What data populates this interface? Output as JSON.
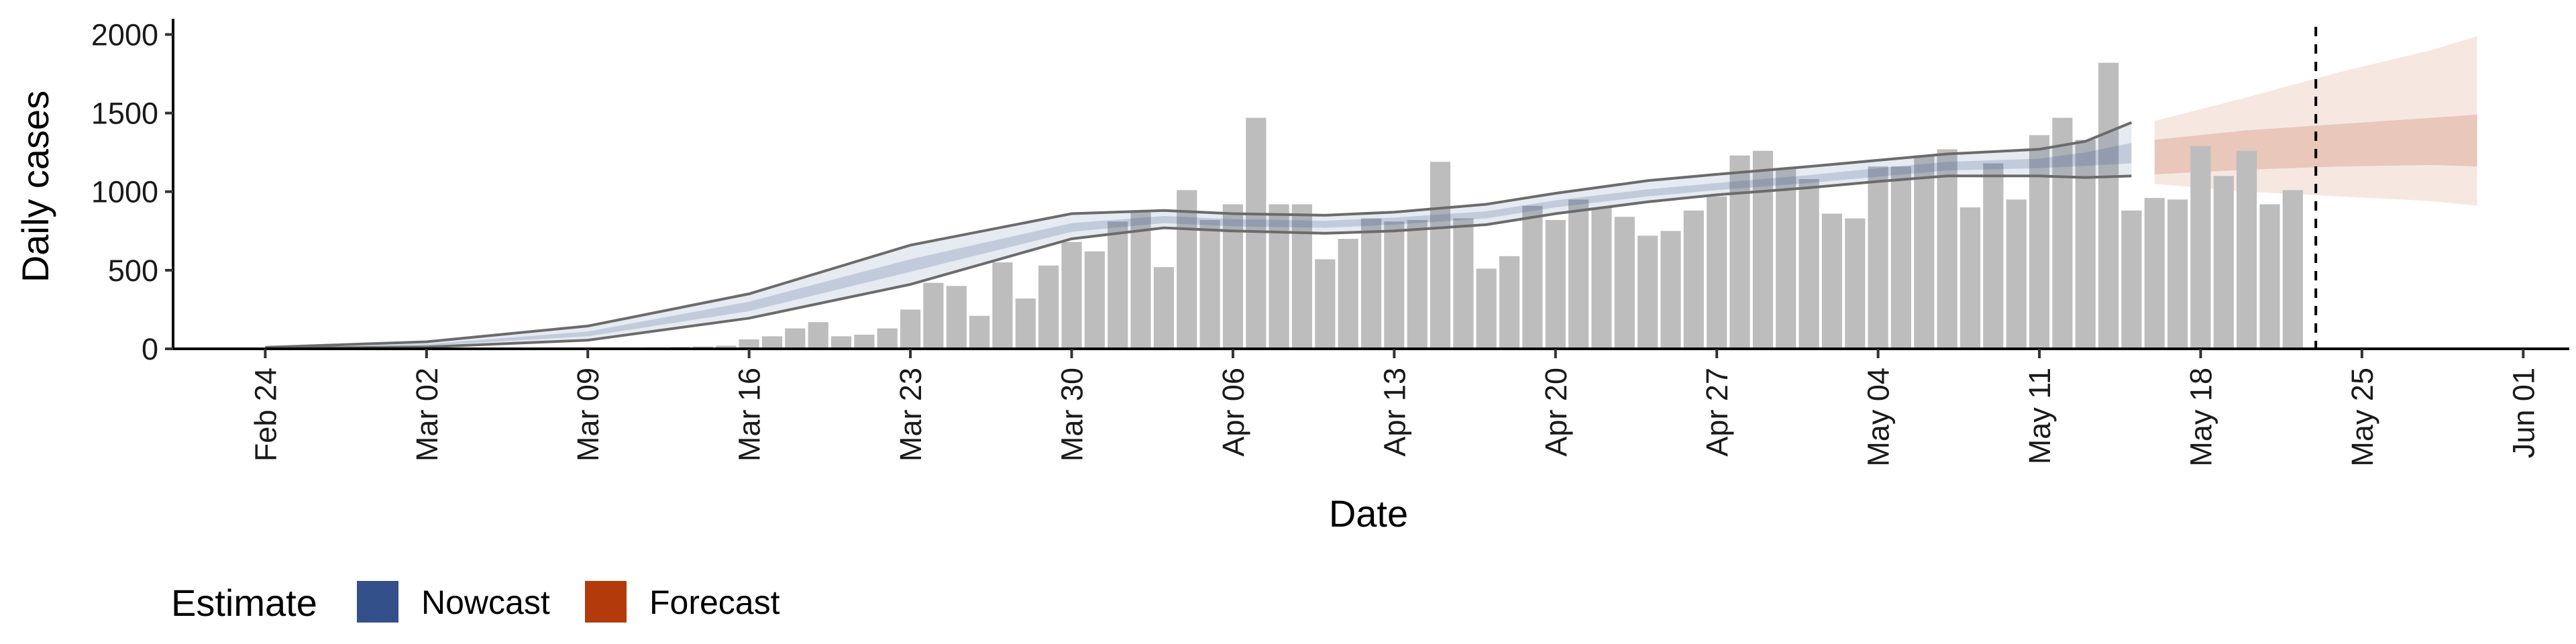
{
  "chart_data": {
    "type": "bar",
    "title": "",
    "xlabel": "Date",
    "ylabel": "Daily cases",
    "ylim": [
      0,
      2100
    ],
    "y_ticks": [
      0,
      500,
      1000,
      1500,
      2000
    ],
    "x_range": [
      "2020-02-20",
      "2020-06-03"
    ],
    "x_tick_dates": [
      "2020-02-24",
      "2020-03-02",
      "2020-03-09",
      "2020-03-16",
      "2020-03-23",
      "2020-03-30",
      "2020-04-06",
      "2020-04-13",
      "2020-04-20",
      "2020-04-27",
      "2020-05-04",
      "2020-05-11",
      "2020-05-18",
      "2020-05-25",
      "2020-06-01"
    ],
    "x_tick_labels": [
      "Feb 24",
      "Mar 02",
      "Mar 09",
      "Mar 16",
      "Mar 23",
      "Mar 30",
      "Apr 06",
      "Apr 13",
      "Apr 20",
      "Apr 27",
      "May 04",
      "May 11",
      "May 18",
      "May 25",
      "Jun 01"
    ],
    "reported_cases": {
      "start_date": "2020-02-24",
      "values": [
        0,
        0,
        0,
        0,
        0,
        0,
        0,
        0,
        0,
        0,
        0,
        0,
        1,
        2,
        3,
        5,
        8,
        10,
        12,
        15,
        20,
        60,
        80,
        130,
        170,
        80,
        90,
        130,
        250,
        420,
        400,
        210,
        550,
        320,
        530,
        680,
        620,
        810,
        870,
        520,
        1010,
        820,
        920,
        1470,
        920,
        920,
        570,
        700,
        830,
        810,
        820,
        1190,
        830,
        510,
        590,
        910,
        820,
        950,
        900,
        840,
        720,
        750,
        880,
        970,
        1230,
        1260,
        1150,
        1080,
        860,
        830,
        1160,
        1160,
        1230,
        1270,
        900,
        1180,
        950,
        1360,
        1470,
        1330,
        1820,
        880,
        960,
        950,
        1290,
        1100,
        1260,
        920,
        1010
      ]
    },
    "nowcast": {
      "name": "Nowcast",
      "color": "#33508a",
      "x": [
        "2020-02-24",
        "2020-03-02",
        "2020-03-09",
        "2020-03-16",
        "2020-03-23",
        "2020-03-30",
        "2020-04-03",
        "2020-04-06",
        "2020-04-10",
        "2020-04-13",
        "2020-04-17",
        "2020-04-20",
        "2020-04-24",
        "2020-04-27",
        "2020-05-01",
        "2020-05-04",
        "2020-05-07",
        "2020-05-11",
        "2020-05-13",
        "2020-05-15"
      ],
      "median": [
        5,
        25,
        95,
        270,
        530,
        770,
        820,
        800,
        790,
        810,
        850,
        920,
        990,
        1030,
        1080,
        1120,
        1160,
        1180,
        1210,
        1250
      ],
      "lower_50": [
        4,
        20,
        80,
        240,
        490,
        745,
        800,
        780,
        770,
        790,
        830,
        900,
        970,
        1010,
        1055,
        1095,
        1135,
        1150,
        1165,
        1180
      ],
      "upper_50": [
        6,
        30,
        110,
        300,
        570,
        800,
        845,
        825,
        815,
        835,
        875,
        945,
        1015,
        1055,
        1105,
        1150,
        1190,
        1210,
        1250,
        1310
      ],
      "lower_90": [
        2,
        12,
        55,
        195,
        410,
        700,
        770,
        750,
        735,
        750,
        790,
        860,
        935,
        980,
        1025,
        1065,
        1100,
        1100,
        1090,
        1100
      ],
      "upper_90": [
        10,
        45,
        145,
        350,
        660,
        860,
        880,
        860,
        850,
        870,
        920,
        990,
        1070,
        1110,
        1160,
        1200,
        1240,
        1270,
        1320,
        1440
      ]
    },
    "forecast": {
      "name": "Forecast",
      "color": "#b33a0b",
      "x": [
        "2020-05-16",
        "2020-05-20",
        "2020-05-24",
        "2020-05-28",
        "2020-05-30"
      ],
      "lower_50": [
        1110,
        1140,
        1160,
        1170,
        1160
      ],
      "upper_50": [
        1330,
        1390,
        1430,
        1470,
        1490
      ],
      "lower_90": [
        1050,
        1000,
        970,
        940,
        910
      ],
      "upper_90": [
        1450,
        1600,
        1760,
        1900,
        1990
      ]
    },
    "vline_date": "2020-05-23",
    "legend": {
      "title": "Estimate",
      "placement": "bottom-left",
      "items": [
        {
          "label": "Nowcast",
          "color": "#33508a"
        },
        {
          "label": "Forecast",
          "color": "#b33a0b"
        }
      ]
    },
    "grid": false
  }
}
